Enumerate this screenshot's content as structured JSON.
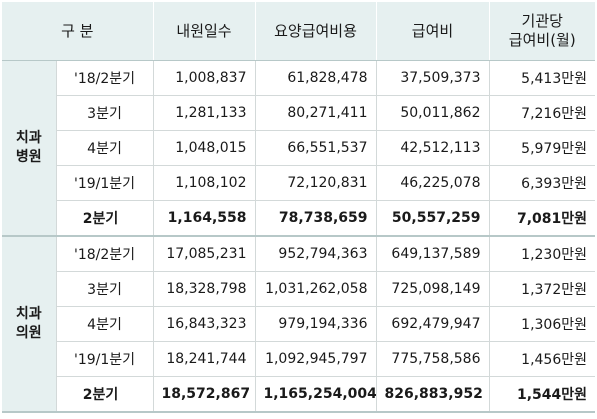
{
  "headers": {
    "category": "구  분",
    "visit_days": "내원일수",
    "care_cost": "요양급여비용",
    "benefit": "급여비",
    "per_inst_line1": "기관당",
    "per_inst_line2": "급여비(월)"
  },
  "groups": [
    {
      "label_line1": "치과",
      "label_line2": "병원",
      "rows": [
        {
          "period": "'18/2분기",
          "visit_days": "1,008,837",
          "care_cost": "61,828,478",
          "benefit": "37,509,373",
          "per_inst": "5,413만원"
        },
        {
          "period": "3분기",
          "visit_days": "1,281,133",
          "care_cost": "80,271,411",
          "benefit": "50,011,862",
          "per_inst": "7,216만원"
        },
        {
          "period": "4분기",
          "visit_days": "1,048,015",
          "care_cost": "66,551,537",
          "benefit": "42,512,113",
          "per_inst": "5,979만원"
        },
        {
          "period": "'19/1분기",
          "visit_days": "1,108,102",
          "care_cost": "72,120,831",
          "benefit": "46,225,078",
          "per_inst": "6,393만원"
        },
        {
          "period": "2분기",
          "visit_days": "1,164,558",
          "care_cost": "78,738,659",
          "benefit": "50,557,259",
          "per_inst": "7,081만원"
        }
      ]
    },
    {
      "label_line1": "치과",
      "label_line2": "의원",
      "rows": [
        {
          "period": "'18/2분기",
          "visit_days": "17,085,231",
          "care_cost": "952,794,363",
          "benefit": "649,137,589",
          "per_inst": "1,230만원"
        },
        {
          "period": "3분기",
          "visit_days": "18,328,798",
          "care_cost": "1,031,262,058",
          "benefit": "725,098,149",
          "per_inst": "1,372만원"
        },
        {
          "period": "4분기",
          "visit_days": "16,843,323",
          "care_cost": "979,194,336",
          "benefit": "692,479,947",
          "per_inst": "1,306만원"
        },
        {
          "period": "'19/1분기",
          "visit_days": "18,241,744",
          "care_cost": "1,092,945,797",
          "benefit": "775,758,586",
          "per_inst": "1,456만원"
        },
        {
          "period": "2분기",
          "visit_days": "18,572,867",
          "care_cost": "1,165,254,004",
          "benefit": "826,883,952",
          "per_inst": "1,544만원"
        }
      ]
    }
  ]
}
